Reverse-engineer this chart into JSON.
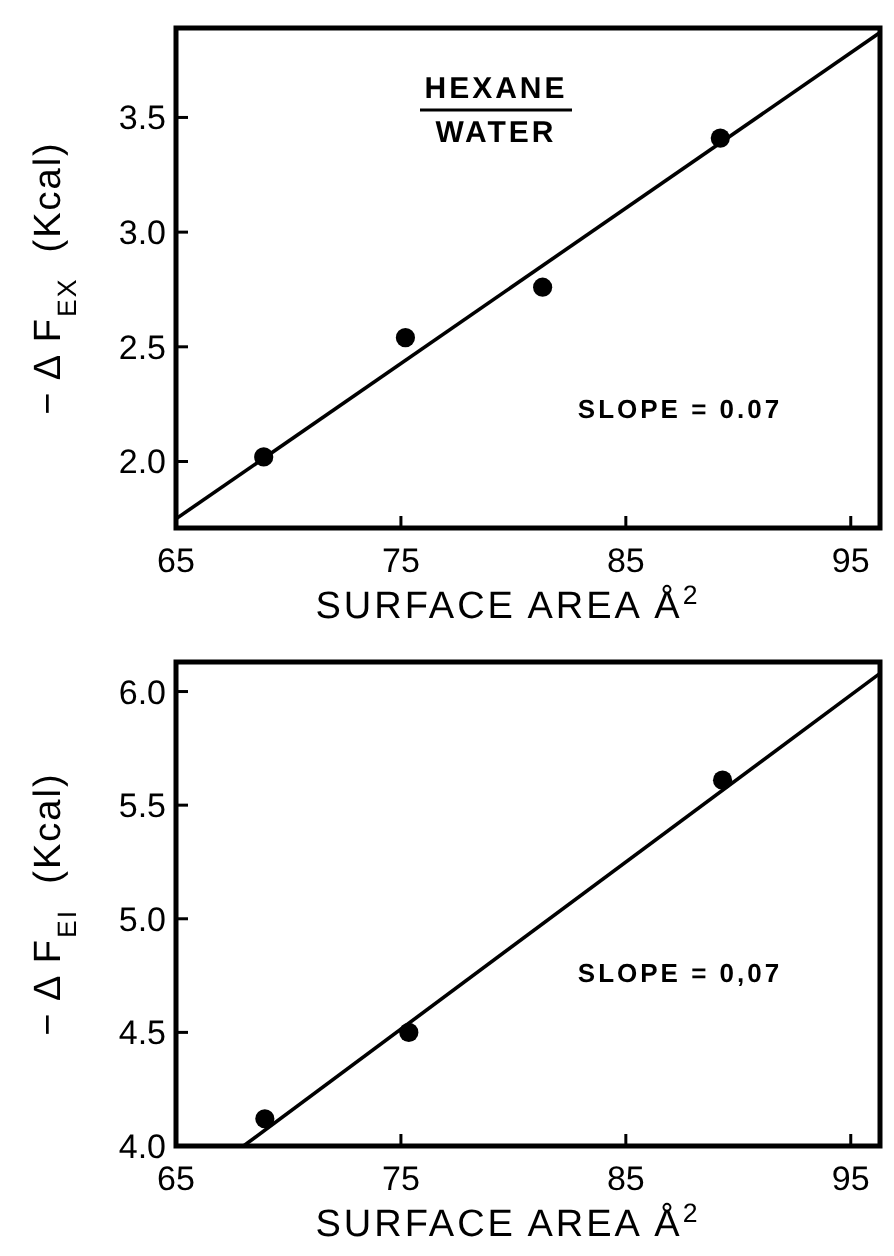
{
  "chart_data": [
    {
      "type": "scatter",
      "xlabel": "SURFACE AREA Å$^{2}$",
      "ylabel": "− Δ F$_{EX}$  (Kcal)",
      "xlim": [
        65,
        96.3
      ],
      "ylim": [
        1.71,
        3.89
      ],
      "xticks": [
        65,
        75,
        85,
        95
      ],
      "yticks": [
        {
          "value": 2,
          "label": "2.0"
        },
        2.5,
        {
          "value": 3,
          "label": "3.0"
        },
        3.5
      ],
      "grid": false,
      "annotations": [
        "HEXANE",
        "WATER",
        "SLOPE = 0.07"
      ],
      "series": [
        {
          "color": "#000000",
          "marker": "circle",
          "x": [
            68.9,
            75.2,
            81.3,
            89.2
          ],
          "values": [
            2.02,
            2.54,
            2.76,
            3.41
          ]
        },
        {
          "type": "line",
          "color": "#000000",
          "line_style": "solid",
          "x": [
            65,
            96.3
          ],
          "values": [
            1.75,
            3.87
          ]
        }
      ]
    },
    {
      "type": "scatter",
      "xlabel": "SURFACE AREA Å$^{2}$",
      "ylabel": "− Δ F$_{EI}$  (Kcal)",
      "xlim": [
        65,
        96.3
      ],
      "ylim": [
        4.0,
        6.13
      ],
      "xticks": [
        65,
        75,
        85,
        95
      ],
      "yticks": [
        {
          "value": 4,
          "label": "4.0"
        },
        4.5,
        {
          "value": 5,
          "label": "5.0"
        },
        5.5,
        {
          "value": 6,
          "label": "6.0"
        }
      ],
      "grid": false,
      "annotations": [
        "SLOPE = 0,07"
      ],
      "series": [
        {
          "color": "#000000",
          "marker": "circle",
          "x": [
            68.95,
            75.35,
            89.3
          ],
          "values": [
            4.12,
            4.5,
            5.61
          ]
        },
        {
          "type": "line",
          "color": "#000000",
          "line_style": "solid",
          "x": [
            68.0,
            96.3
          ],
          "values": [
            4.0,
            6.08
          ]
        }
      ]
    }
  ]
}
